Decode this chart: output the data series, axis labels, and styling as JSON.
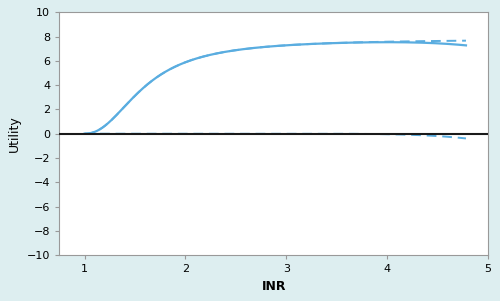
{
  "background_color": "#ddeef0",
  "plot_bg_color": "#ffffff",
  "line_color": "#5aade0",
  "xlim": [
    0.75,
    5.0
  ],
  "ylim": [
    -10,
    10
  ],
  "xticks": [
    1,
    2,
    3,
    4,
    5
  ],
  "yticks": [
    -10,
    -8,
    -6,
    -4,
    -2,
    0,
    2,
    4,
    6,
    8,
    10
  ],
  "xlabel": "INR",
  "ylabel": "Utility",
  "xlabel_fontsize": 9,
  "ylabel_fontsize": 9,
  "emax": 7.8,
  "ec50": 0.6,
  "hill": 2.2,
  "hemo_scale": 0.018,
  "hemo_power": 4.5,
  "hemo_onset": 2.8,
  "x_start": 1.0,
  "x_end": 4.78
}
